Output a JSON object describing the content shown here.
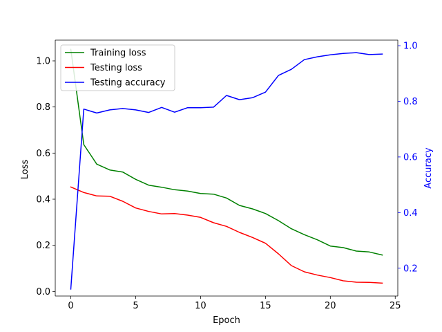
{
  "chart_data": {
    "type": "line",
    "title": "",
    "xlabel": "Epoch",
    "ylabel": "Loss",
    "y2label": "Accuracy",
    "xlim": [
      -1.2,
      25.2
    ],
    "ylim": [
      -0.02,
      1.09
    ],
    "y2lim": [
      0.1,
      1.02
    ],
    "xticks": [
      0,
      5,
      10,
      15,
      20,
      25
    ],
    "yticks": [
      0.0,
      0.2,
      0.4,
      0.6,
      0.8,
      1.0
    ],
    "y2ticks": [
      0.2,
      0.4,
      0.6,
      0.8,
      1.0
    ],
    "grid": false,
    "legend_position": "upper-left",
    "x": [
      0,
      1,
      2,
      3,
      4,
      5,
      6,
      7,
      8,
      9,
      10,
      11,
      12,
      13,
      14,
      15,
      16,
      17,
      18,
      19,
      20,
      21,
      22,
      23,
      24
    ],
    "series": [
      {
        "name": "Training loss",
        "axis": "left",
        "color": "#008000",
        "values": [
          1.05,
          0.637,
          0.552,
          0.527,
          0.518,
          0.486,
          0.461,
          0.452,
          0.441,
          0.435,
          0.425,
          0.422,
          0.405,
          0.373,
          0.358,
          0.338,
          0.307,
          0.272,
          0.246,
          0.224,
          0.197,
          0.19,
          0.175,
          0.171,
          0.158
        ]
      },
      {
        "name": "Testing loss",
        "axis": "left",
        "color": "#ff0000",
        "values": [
          0.453,
          0.429,
          0.414,
          0.413,
          0.391,
          0.362,
          0.347,
          0.336,
          0.338,
          0.331,
          0.321,
          0.298,
          0.282,
          0.256,
          0.234,
          0.209,
          0.163,
          0.112,
          0.085,
          0.071,
          0.06,
          0.046,
          0.04,
          0.039,
          0.036
        ]
      },
      {
        "name": "Testing accuracy",
        "axis": "right",
        "color": "#0000ff",
        "values": [
          0.125,
          0.772,
          0.758,
          0.769,
          0.774,
          0.769,
          0.76,
          0.778,
          0.761,
          0.777,
          0.777,
          0.779,
          0.821,
          0.806,
          0.813,
          0.833,
          0.893,
          0.915,
          0.95,
          0.96,
          0.967,
          0.972,
          0.975,
          0.968,
          0.97
        ]
      }
    ]
  }
}
